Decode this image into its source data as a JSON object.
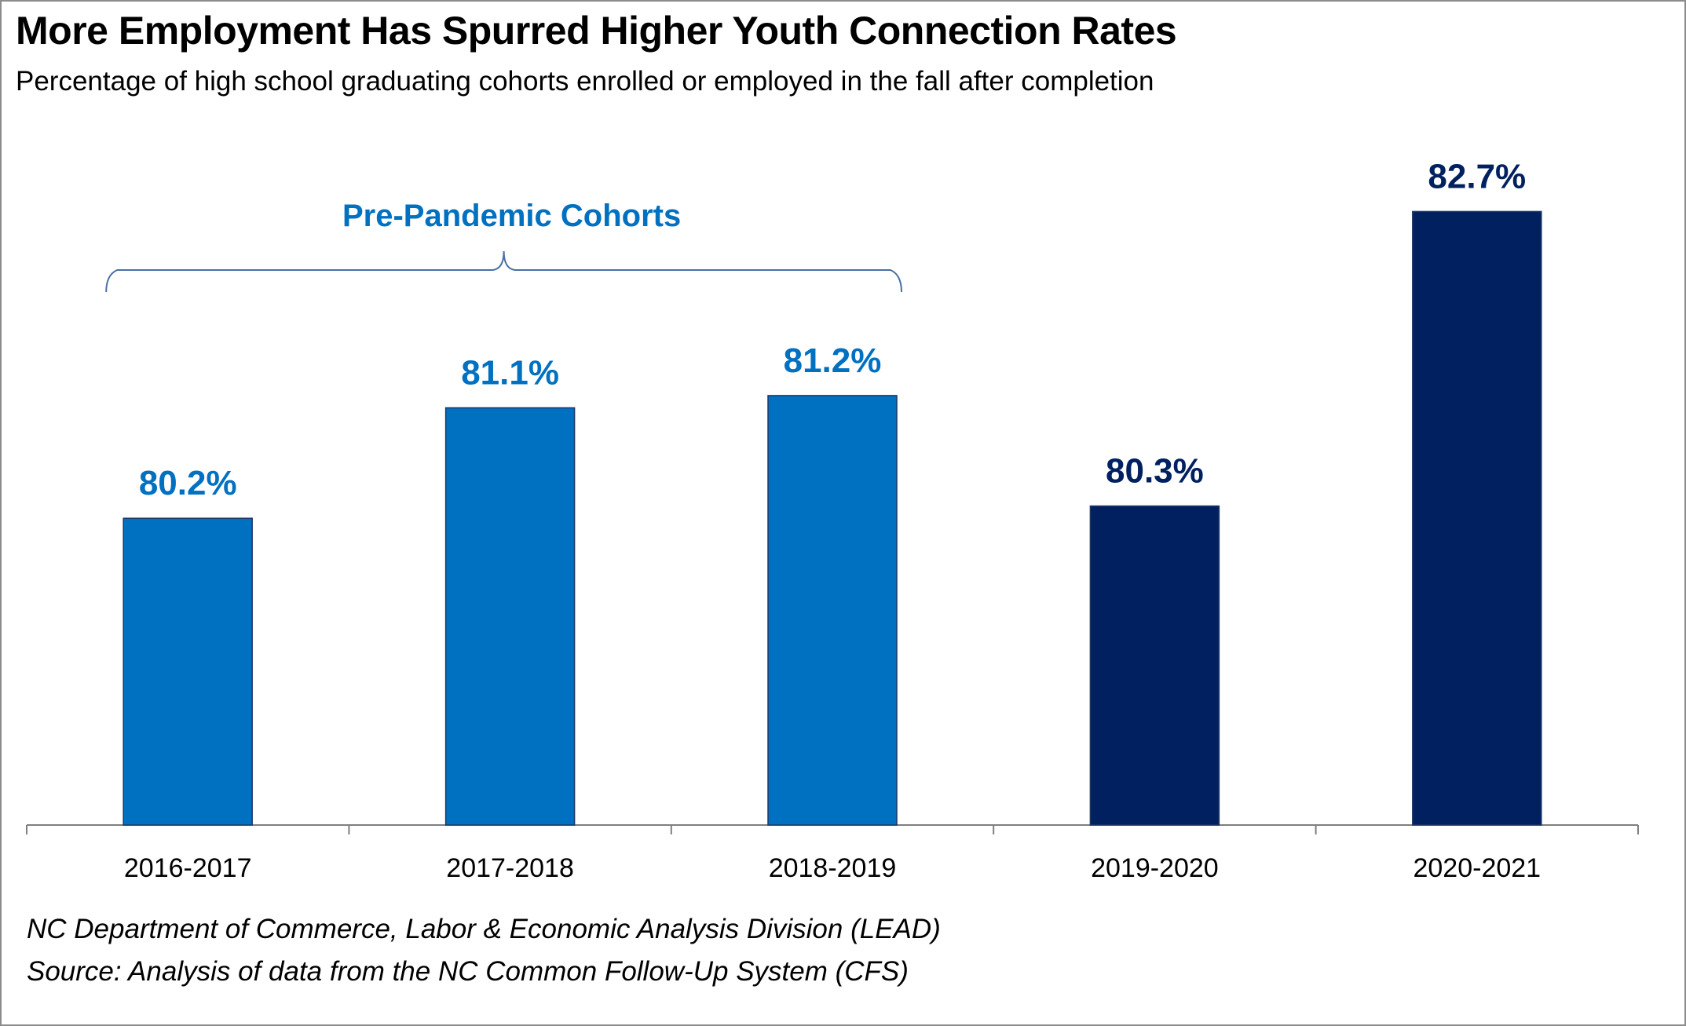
{
  "title": "More Employment Has Spurred Higher Youth Connection Rates",
  "subtitle": "Percentage of high school graduating cohorts enrolled or employed in the fall after completion",
  "source_lines": [
    "NC Department of Commerce, Labor & Economic Analysis Division (LEAD)",
    "Source: Analysis of data from the NC Common Follow-Up System (CFS)"
  ],
  "colors": {
    "pre_pandemic": "#0070C0",
    "pandemic": "#002060",
    "axis": "#7f7f7f",
    "bracket": "#4a6fa5"
  },
  "chart_data": {
    "type": "bar",
    "title": "More Employment Has Spurred Higher Youth Connection Rates",
    "subtitle": "Percentage of high school graduating cohorts enrolled or employed in the fall after completion",
    "xlabel": "",
    "ylabel": "",
    "categories": [
      "2016-2017",
      "2017-2018",
      "2018-2019",
      "2019-2020",
      "2020-2021"
    ],
    "values": [
      80.2,
      81.1,
      81.2,
      80.3,
      82.7
    ],
    "value_labels": [
      "80.2%",
      "81.1%",
      "81.2%",
      "80.3%",
      "82.7%"
    ],
    "groups": [
      "pre_pandemic",
      "pre_pandemic",
      "pre_pandemic",
      "pandemic",
      "pandemic"
    ],
    "ylim": [
      77.7,
      83.4
    ],
    "grid": false,
    "annotation": {
      "text": "Pre-Pandemic Cohorts",
      "spans_categories": [
        "2016-2017",
        "2017-2018",
        "2018-2019"
      ]
    }
  }
}
